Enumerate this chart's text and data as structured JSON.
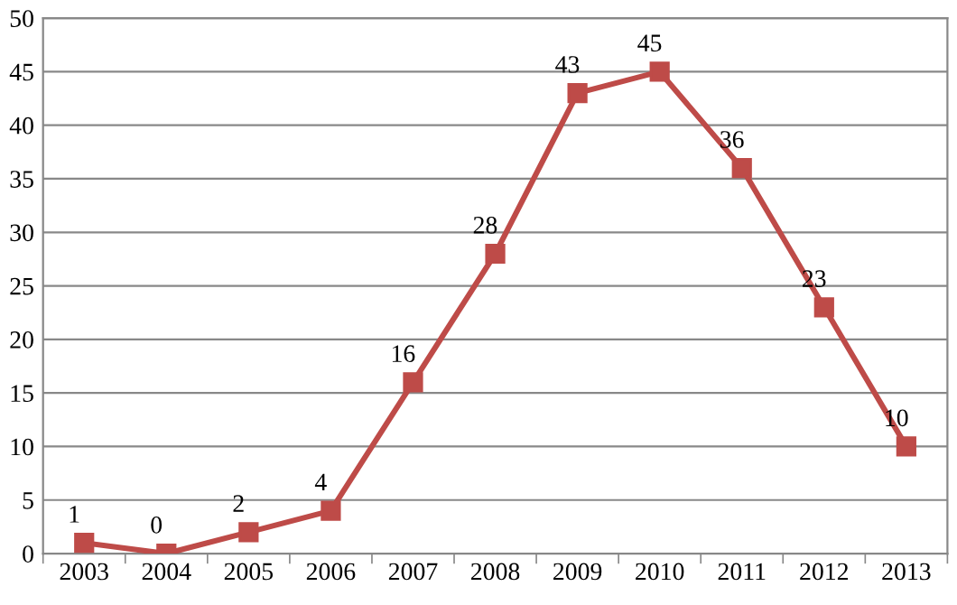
{
  "chart_data": {
    "type": "line",
    "categories": [
      "2003",
      "2004",
      "2005",
      "2006",
      "2007",
      "2008",
      "2009",
      "2010",
      "2011",
      "2012",
      "2013"
    ],
    "series": [
      {
        "color": "#be4b48",
        "values": [
          1,
          0,
          2,
          4,
          16,
          28,
          43,
          45,
          36,
          23,
          10
        ]
      }
    ],
    "ylim": [
      0,
      50
    ],
    "yticks": [
      0,
      5,
      10,
      15,
      20,
      25,
      30,
      35,
      40,
      45,
      50
    ],
    "grid": "y",
    "marker": "square",
    "line_style": "solid",
    "data_labels": true,
    "legend": false
  }
}
